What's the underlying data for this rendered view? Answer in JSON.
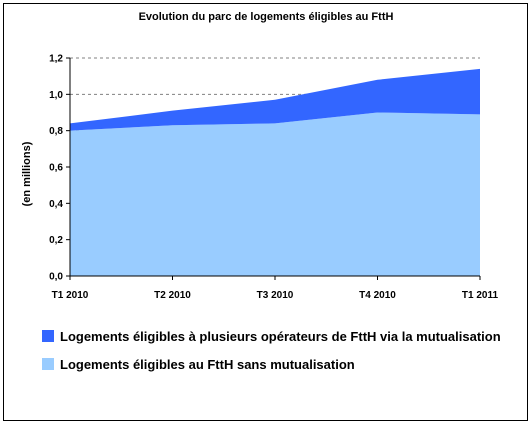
{
  "chart_data": {
    "type": "area",
    "stacked": true,
    "title": "Evolution du parc de logements éligibles au FttH",
    "xlabel": "",
    "ylabel": "(en millions)",
    "categories": [
      "T1 2010",
      "T2 2010",
      "T3 2010",
      "T4 2010",
      "T1 2011"
    ],
    "ylim": [
      0,
      1.2
    ],
    "yticks": [
      "0,0",
      "0,2",
      "0,4",
      "0,6",
      "0,8",
      "1,0",
      "1,2"
    ],
    "ytick_values": [
      0,
      0.2,
      0.4,
      0.6,
      0.8,
      1.0,
      1.2
    ],
    "grid": "horizontal dashed",
    "legend_position": "bottom",
    "series": [
      {
        "name": "Logements éligibles au FttH sans mutualisation",
        "color": "#99CCFF",
        "values": [
          0.8,
          0.83,
          0.84,
          0.9,
          0.89
        ]
      },
      {
        "name": "Logements éligibles à plusieurs opérateurs de FttH via la mutualisation",
        "color": "#3366FF",
        "values": [
          0.04,
          0.08,
          0.13,
          0.18,
          0.25
        ]
      }
    ],
    "legend": [
      {
        "label": "Logements éligibles à plusieurs opérateurs de FttH via la mutualisation",
        "color": "#3366FF"
      },
      {
        "label": "Logements éligibles au FttH sans mutualisation",
        "color": "#99CCFF"
      }
    ]
  }
}
